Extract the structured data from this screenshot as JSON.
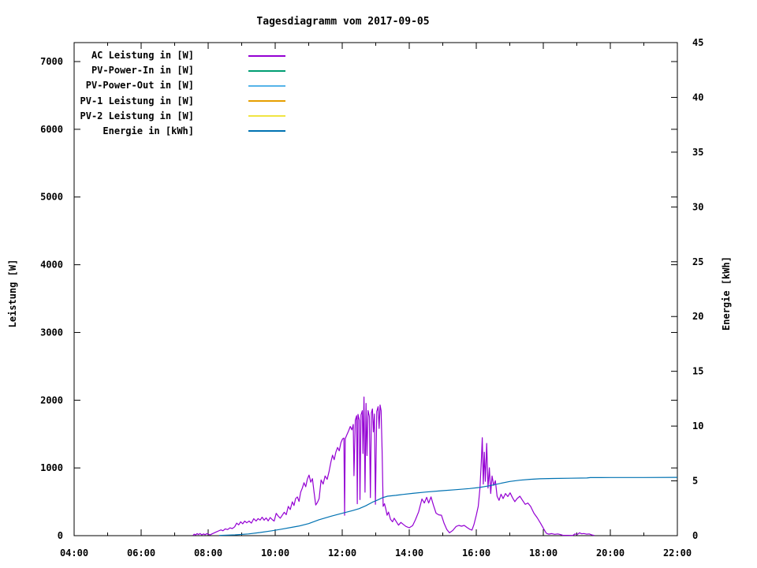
{
  "title": "Tagesdiagramm vom 2017-09-05",
  "chart_data": {
    "type": "line",
    "title": "Tagesdiagramm vom 2017-09-05",
    "xlabel": "",
    "ylabel": "Leistung [W]",
    "y2label": "Energie [kWh]",
    "grid": false,
    "legend_position": "top-left-inside",
    "background": "#ffffff",
    "axis_color": "#000000",
    "x_axis": {
      "unit": "time HH:MM",
      "start_hour": 4,
      "end_hour": 22,
      "major_tick_hours": [
        4,
        6,
        8,
        10,
        12,
        14,
        16,
        18,
        20,
        22
      ],
      "major_tick_labels": [
        "04:00",
        "06:00",
        "08:00",
        "10:00",
        "12:00",
        "14:00",
        "16:00",
        "18:00",
        "20:00",
        "22:00"
      ],
      "minor_tick_hours": [
        5,
        7,
        9,
        11,
        13,
        15,
        17,
        19,
        21
      ]
    },
    "y_axis": {
      "range": [
        0,
        7280
      ],
      "ticks": [
        0,
        1000,
        2000,
        3000,
        4000,
        5000,
        6000,
        7000
      ],
      "mirrored_on_right": true
    },
    "y2_axis": {
      "range": [
        0,
        45
      ],
      "ticks": [
        0,
        5,
        10,
        15,
        20,
        25,
        30,
        35,
        40,
        45
      ]
    },
    "series": [
      {
        "name": "AC Leistung in [W]",
        "color": "#9400d3",
        "axis": "y1",
        "points": [
          [
            7.55,
            3
          ],
          [
            7.58,
            22
          ],
          [
            7.62,
            10
          ],
          [
            7.67,
            30
          ],
          [
            7.71,
            16
          ],
          [
            7.76,
            32
          ],
          [
            7.81,
            12
          ],
          [
            7.86,
            26
          ],
          [
            7.91,
            14
          ],
          [
            7.96,
            30
          ],
          [
            8.01,
            20
          ],
          [
            8.06,
            12
          ],
          [
            8.11,
            26
          ],
          [
            8.17,
            38
          ],
          [
            8.24,
            55
          ],
          [
            8.31,
            70
          ],
          [
            8.38,
            85
          ],
          [
            8.44,
            72
          ],
          [
            8.51,
            100
          ],
          [
            8.58,
            90
          ],
          [
            8.65,
            115
          ],
          [
            8.72,
            105
          ],
          [
            8.79,
            130
          ],
          [
            8.85,
            185
          ],
          [
            8.91,
            160
          ],
          [
            8.97,
            205
          ],
          [
            9.03,
            175
          ],
          [
            9.09,
            215
          ],
          [
            9.15,
            190
          ],
          [
            9.22,
            215
          ],
          [
            9.29,
            185
          ],
          [
            9.36,
            250
          ],
          [
            9.43,
            215
          ],
          [
            9.49,
            252
          ],
          [
            9.55,
            230
          ],
          [
            9.61,
            272
          ],
          [
            9.67,
            228
          ],
          [
            9.73,
            262
          ],
          [
            9.79,
            218
          ],
          [
            9.85,
            268
          ],
          [
            9.91,
            238
          ],
          [
            9.97,
            215
          ],
          [
            10.03,
            330
          ],
          [
            10.09,
            290
          ],
          [
            10.15,
            258
          ],
          [
            10.21,
            300
          ],
          [
            10.27,
            345
          ],
          [
            10.33,
            310
          ],
          [
            10.39,
            432
          ],
          [
            10.45,
            385
          ],
          [
            10.51,
            500
          ],
          [
            10.56,
            445
          ],
          [
            10.61,
            548
          ],
          [
            10.66,
            572
          ],
          [
            10.71,
            505
          ],
          [
            10.76,
            642
          ],
          [
            10.81,
            702
          ],
          [
            10.86,
            782
          ],
          [
            10.91,
            722
          ],
          [
            10.96,
            835
          ],
          [
            11.01,
            895
          ],
          [
            11.06,
            790
          ],
          [
            11.11,
            842
          ],
          [
            11.16,
            640
          ],
          [
            11.21,
            452
          ],
          [
            11.26,
            492
          ],
          [
            11.31,
            548
          ],
          [
            11.37,
            822
          ],
          [
            11.43,
            762
          ],
          [
            11.49,
            882
          ],
          [
            11.55,
            832
          ],
          [
            11.61,
            952
          ],
          [
            11.66,
            1085
          ],
          [
            11.71,
            1188
          ],
          [
            11.76,
            1122
          ],
          [
            11.81,
            1232
          ],
          [
            11.86,
            1302
          ],
          [
            11.91,
            1252
          ],
          [
            11.96,
            1372
          ],
          [
            12.01,
            1428
          ],
          [
            12.05,
            1442
          ],
          [
            12.07,
            302
          ],
          [
            12.09,
            1432
          ],
          [
            12.14,
            1492
          ],
          [
            12.19,
            1548
          ],
          [
            12.24,
            1612
          ],
          [
            12.29,
            1562
          ],
          [
            12.33,
            1642
          ],
          [
            12.35,
            885
          ],
          [
            12.39,
            1705
          ],
          [
            12.43,
            1772
          ],
          [
            12.45,
            472
          ],
          [
            12.47,
            1792
          ],
          [
            12.51,
            1705
          ],
          [
            12.53,
            532
          ],
          [
            12.56,
            1782
          ],
          [
            12.6,
            1845
          ],
          [
            12.62,
            1212
          ],
          [
            12.65,
            2048
          ],
          [
            12.68,
            642
          ],
          [
            12.71,
            1952
          ],
          [
            12.74,
            1182
          ],
          [
            12.77,
            1848
          ],
          [
            12.81,
            1762
          ],
          [
            12.84,
            562
          ],
          [
            12.87,
            1812
          ],
          [
            12.9,
            1872
          ],
          [
            12.93,
            1532
          ],
          [
            12.96,
            1795
          ],
          [
            12.99,
            462
          ],
          [
            13.03,
            1832
          ],
          [
            13.07,
            1905
          ],
          [
            13.1,
            1582
          ],
          [
            13.13,
            1930
          ],
          [
            13.16,
            1845
          ],
          [
            13.19,
            1242
          ],
          [
            13.22,
            432
          ],
          [
            13.26,
            472
          ],
          [
            13.3,
            392
          ],
          [
            13.34,
            302
          ],
          [
            13.38,
            348
          ],
          [
            13.44,
            242
          ],
          [
            13.5,
            205
          ],
          [
            13.55,
            258
          ],
          [
            13.6,
            218
          ],
          [
            13.68,
            155
          ],
          [
            13.75,
            196
          ],
          [
            13.82,
            166
          ],
          [
            13.9,
            136
          ],
          [
            14.0,
            116
          ],
          [
            14.1,
            148
          ],
          [
            14.18,
            232
          ],
          [
            14.28,
            352
          ],
          [
            14.38,
            542
          ],
          [
            14.45,
            482
          ],
          [
            14.52,
            566
          ],
          [
            14.58,
            482
          ],
          [
            14.65,
            572
          ],
          [
            14.72,
            452
          ],
          [
            14.8,
            332
          ],
          [
            14.88,
            308
          ],
          [
            14.96,
            302
          ],
          [
            15.04,
            182
          ],
          [
            15.12,
            92
          ],
          [
            15.2,
            42
          ],
          [
            15.3,
            78
          ],
          [
            15.4,
            136
          ],
          [
            15.48,
            152
          ],
          [
            15.56,
            140
          ],
          [
            15.64,
            152
          ],
          [
            15.72,
            122
          ],
          [
            15.8,
            96
          ],
          [
            15.87,
            82
          ],
          [
            15.93,
            162
          ],
          [
            16.0,
            302
          ],
          [
            16.06,
            435
          ],
          [
            16.11,
            705
          ],
          [
            16.15,
            1102
          ],
          [
            16.18,
            1445
          ],
          [
            16.21,
            762
          ],
          [
            16.24,
            1232
          ],
          [
            16.27,
            802
          ],
          [
            16.31,
            1362
          ],
          [
            16.35,
            702
          ],
          [
            16.39,
            1002
          ],
          [
            16.43,
            622
          ],
          [
            16.47,
            882
          ],
          [
            16.52,
            742
          ],
          [
            16.57,
            812
          ],
          [
            16.62,
            582
          ],
          [
            16.68,
            522
          ],
          [
            16.74,
            612
          ],
          [
            16.8,
            548
          ],
          [
            16.87,
            622
          ],
          [
            16.94,
            578
          ],
          [
            17.01,
            632
          ],
          [
            17.08,
            562
          ],
          [
            17.15,
            502
          ],
          [
            17.22,
            548
          ],
          [
            17.3,
            582
          ],
          [
            17.38,
            522
          ],
          [
            17.46,
            462
          ],
          [
            17.54,
            482
          ],
          [
            17.62,
            432
          ],
          [
            17.72,
            332
          ],
          [
            17.82,
            262
          ],
          [
            17.92,
            182
          ],
          [
            18.02,
            92
          ],
          [
            18.09,
            36
          ],
          [
            18.16,
            22
          ],
          [
            18.25,
            30
          ],
          [
            18.34,
            20
          ],
          [
            18.43,
            26
          ],
          [
            18.51,
            16
          ],
          [
            18.58,
            6
          ],
          [
            18.88,
            4
          ],
          [
            18.94,
            24
          ],
          [
            19.02,
            20
          ],
          [
            19.08,
            42
          ],
          [
            19.14,
            28
          ],
          [
            19.21,
            32
          ],
          [
            19.29,
            22
          ],
          [
            19.37,
            26
          ],
          [
            19.45,
            10
          ],
          [
            19.52,
            3
          ]
        ]
      },
      {
        "name": "PV-Power-In in [W]",
        "color": "#009e73",
        "axis": "y1",
        "points": []
      },
      {
        "name": "PV-Power-Out in [W]",
        "color": "#56b4e9",
        "axis": "y1",
        "points": []
      },
      {
        "name": "PV-1 Leistung in [W]",
        "color": "#e69f00",
        "axis": "y1",
        "points": []
      },
      {
        "name": "PV-2 Leistung in [W]",
        "color": "#f0e442",
        "axis": "y1",
        "points": []
      },
      {
        "name": "Energie in [kWh]",
        "color": "#0072b2",
        "axis": "y2",
        "points": [
          [
            8.33,
            0.02
          ],
          [
            8.8,
            0.07
          ],
          [
            9.2,
            0.16
          ],
          [
            9.55,
            0.29
          ],
          [
            9.9,
            0.45
          ],
          [
            10.2,
            0.6
          ],
          [
            10.5,
            0.76
          ],
          [
            10.7,
            0.87
          ],
          [
            11.0,
            1.1
          ],
          [
            11.3,
            1.45
          ],
          [
            11.67,
            1.78
          ],
          [
            12.07,
            2.1
          ],
          [
            12.3,
            2.28
          ],
          [
            12.5,
            2.46
          ],
          [
            12.7,
            2.72
          ],
          [
            12.9,
            3.05
          ],
          [
            13.05,
            3.25
          ],
          [
            13.2,
            3.46
          ],
          [
            13.35,
            3.6
          ],
          [
            13.6,
            3.68
          ],
          [
            13.8,
            3.76
          ],
          [
            14.1,
            3.86
          ],
          [
            14.5,
            3.98
          ],
          [
            14.95,
            4.1
          ],
          [
            15.4,
            4.2
          ],
          [
            15.8,
            4.3
          ],
          [
            16.1,
            4.4
          ],
          [
            16.4,
            4.56
          ],
          [
            16.7,
            4.76
          ],
          [
            17.0,
            4.95
          ],
          [
            17.3,
            5.06
          ],
          [
            17.6,
            5.14
          ],
          [
            17.9,
            5.19
          ],
          [
            18.3,
            5.22
          ],
          [
            18.8,
            5.24
          ],
          [
            19.3,
            5.26
          ],
          [
            19.4,
            5.3
          ],
          [
            20.0,
            5.31
          ],
          [
            21.0,
            5.31
          ],
          [
            22.0,
            5.32
          ]
        ]
      }
    ]
  }
}
